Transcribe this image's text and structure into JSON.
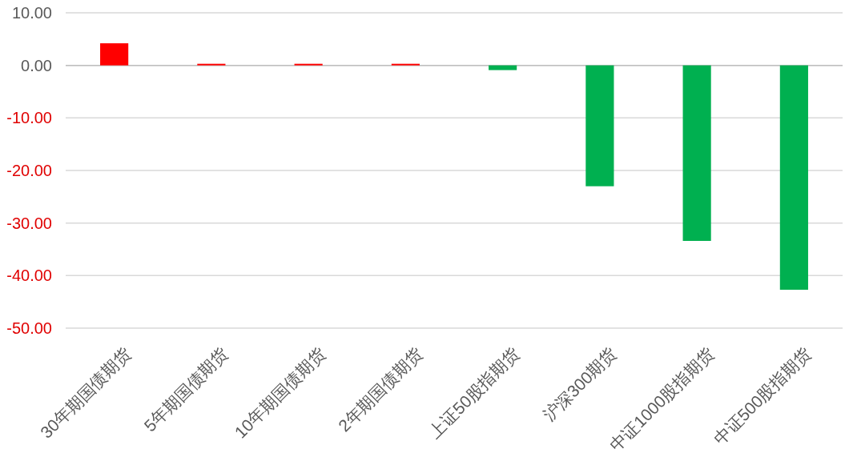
{
  "chart_data": {
    "type": "bar",
    "categories": [
      "30年期国债期货",
      "5年期国债期货",
      "10年期国债期货",
      "2年期国债期货",
      "上证50股指期货",
      "沪深300期货",
      "中证1000股指期货",
      "中证500股指期货"
    ],
    "values": [
      4.2,
      0.3,
      0.3,
      0.3,
      -0.9,
      -23.0,
      -33.4,
      -42.7
    ],
    "colors": [
      "#ff0000",
      "#ff0000",
      "#ff0000",
      "#ff0000",
      "#00b050",
      "#00b050",
      "#00b050",
      "#00b050"
    ],
    "ylim": [
      -50,
      10
    ],
    "yticks": [
      {
        "value": 10,
        "label": "10.00"
      },
      {
        "value": 0,
        "label": "0.00"
      },
      {
        "value": -10,
        "label": "-10.00"
      },
      {
        "value": -20,
        "label": "-20.00"
      },
      {
        "value": -30,
        "label": "-30.00"
      },
      {
        "value": -40,
        "label": "-40.00"
      },
      {
        "value": -50,
        "label": "-50.00"
      }
    ],
    "grid": "y"
  }
}
